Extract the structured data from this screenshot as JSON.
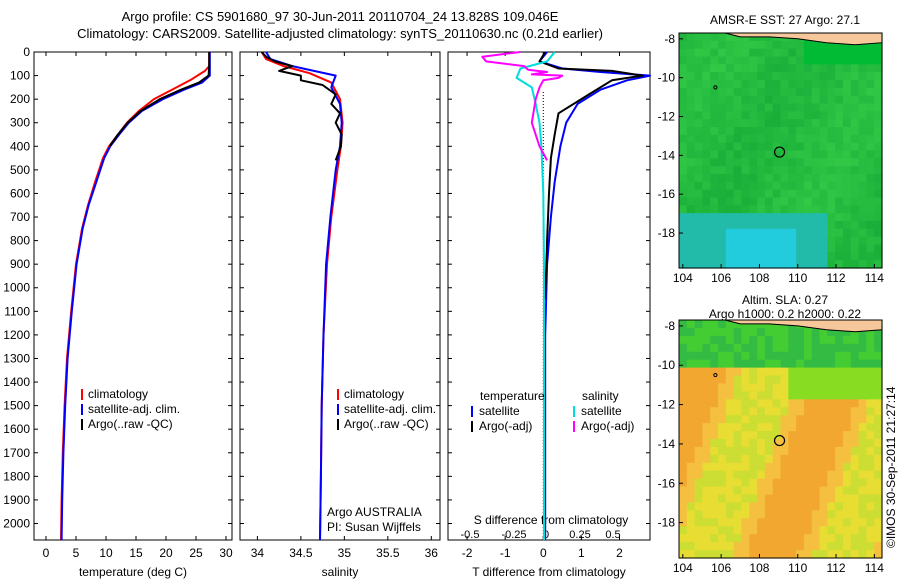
{
  "header": {
    "line1": "Argo profile: CS 5901680_97 30-Jun-2011 20110704_24 13.828S 109.046E",
    "line2": "Climatology: CARS2009. Satellite-adjusted climatology: synTS_20110630.nc (0.21d earlier)"
  },
  "credit": "©IMOS 30-Sep-2011 21:27:14",
  "chart_data": [
    {
      "type": "line",
      "panel": "temperature",
      "xlabel": "temperature (deg C)",
      "ylabel": "",
      "xlim": [
        -2,
        31
      ],
      "ylim": [
        2070,
        0
      ],
      "y_inverted": true,
      "xticks": [
        0,
        5,
        10,
        15,
        20,
        25,
        30
      ],
      "yticks": [
        0,
        100,
        200,
        300,
        400,
        500,
        600,
        700,
        800,
        900,
        1000,
        1100,
        1200,
        1300,
        1400,
        1500,
        1600,
        1700,
        1800,
        1900,
        2000
      ],
      "legend": [
        "climatology",
        "satellite-adj. clim.",
        "Argo(..raw -QC)"
      ],
      "legend_position": "lower-center",
      "series": [
        {
          "name": "climatology",
          "color": "#ff0000",
          "x": [
            27.2,
            27.2,
            26.5,
            24,
            21,
            18,
            15.5,
            13.5,
            12,
            10.5,
            9.5,
            8.2,
            7,
            6,
            5,
            4.2,
            3.5,
            3.1,
            2.8,
            2.6,
            2.5
          ],
          "y": [
            0,
            60,
            80,
            120,
            160,
            200,
            250,
            300,
            350,
            400,
            450,
            550,
            650,
            750,
            900,
            1100,
            1300,
            1500,
            1700,
            1900,
            2070
          ]
        },
        {
          "name": "satellite-adj. clim.",
          "color": "#0000ff",
          "x": [
            27.3,
            27.3,
            27.3,
            26,
            23,
            19.5,
            16,
            13.8,
            12.2,
            10.7,
            9.7,
            8.4,
            7.1,
            6.1,
            5.1,
            4.3,
            3.6,
            3.2,
            2.9,
            2.7,
            2.6
          ],
          "y": [
            0,
            60,
            100,
            130,
            160,
            200,
            250,
            300,
            350,
            400,
            450,
            550,
            650,
            750,
            900,
            1100,
            1300,
            1500,
            1700,
            1900,
            2070
          ]
        },
        {
          "name": "Argo(..raw -QC)",
          "color": "#000000",
          "x": [
            27.2,
            27.2,
            27.1,
            25.5,
            22.5,
            19,
            15.8,
            13.6,
            12,
            10.6
          ],
          "y": [
            0,
            60,
            100,
            130,
            160,
            200,
            250,
            300,
            350,
            400
          ]
        }
      ]
    },
    {
      "type": "line",
      "panel": "salinity",
      "xlabel": "salinity",
      "ylabel": "",
      "xlim": [
        33.8,
        36.1
      ],
      "ylim": [
        2070,
        0
      ],
      "y_inverted": true,
      "xticks": [
        34,
        34.5,
        35,
        35.5,
        36
      ],
      "legend": [
        "climatology",
        "satellite-adj. clim.",
        "Argo(..raw -QC)"
      ],
      "legend_position": "lower-center",
      "annotation": "Argo AUSTRALIA",
      "annotation2": "PI: Susan Wijffels",
      "series": [
        {
          "name": "climatology",
          "color": "#ff0000",
          "x": [
            34.05,
            34.1,
            34.3,
            34.6,
            34.85,
            34.95,
            34.98,
            34.96,
            34.92,
            34.85,
            34.8,
            34.76,
            34.74,
            34.73,
            34.72
          ],
          "y": [
            0,
            30,
            60,
            90,
            130,
            200,
            300,
            400,
            500,
            700,
            900,
            1200,
            1500,
            1800,
            2070
          ]
        },
        {
          "name": "satellite-adj. clim.",
          "color": "#0000ff",
          "x": [
            34.1,
            34.15,
            34.4,
            34.9,
            34.85,
            34.95,
            34.97,
            34.95,
            34.9,
            34.84,
            34.79,
            34.76,
            34.74,
            34.73,
            34.72
          ],
          "y": [
            0,
            30,
            60,
            100,
            150,
            220,
            300,
            400,
            500,
            700,
            900,
            1200,
            1500,
            1800,
            2070
          ]
        },
        {
          "name": "Argo(..raw -QC)",
          "color": "#000000",
          "x": [
            34.05,
            34.1,
            34.2,
            34.4,
            34.25,
            34.5,
            34.5,
            34.75,
            34.9,
            34.85,
            34.95,
            34.9,
            34.97,
            34.96,
            34.9
          ],
          "y": [
            0,
            20,
            40,
            60,
            80,
            100,
            120,
            140,
            180,
            220,
            260,
            300,
            350,
            400,
            460
          ]
        }
      ]
    },
    {
      "type": "line",
      "panel": "differences",
      "xlabel": "T difference from climatology",
      "xlabel_top": "S difference from climatology",
      "ylabel": "",
      "xlim": [
        -2.5,
        2.8
      ],
      "xticks": [
        -2,
        -1,
        0,
        1,
        2
      ],
      "xticks_top": [
        -0.5,
        -0.25,
        0,
        0.25,
        0.5
      ],
      "ylim": [
        2070,
        0
      ],
      "y_inverted": true,
      "legend_groups": [
        {
          "title": "temperature",
          "items": [
            "satellite",
            "Argo(-adj)"
          ]
        },
        {
          "title": "salinity",
          "items": [
            "satellite",
            "Argo(-adj)"
          ]
        }
      ],
      "legend_position": "lower-center",
      "series": [
        {
          "name": "temperature satellite",
          "color": "#0000ff",
          "x": [
            0.1,
            -0.1,
            0.5,
            1.5,
            2.8,
            2.2,
            1.5,
            0.9,
            0.6,
            0.45,
            0.3,
            0.2,
            0.1,
            0.05,
            0.05,
            0.05
          ],
          "y": [
            0,
            40,
            70,
            85,
            100,
            120,
            160,
            220,
            300,
            400,
            550,
            700,
            900,
            1200,
            1600,
            2070
          ]
        },
        {
          "name": "temperature Argo(-adj)",
          "color": "#000000",
          "x": [
            0.05,
            -0.1,
            0.4,
            1.8,
            2.6,
            1.8,
            1.2,
            0.4,
            0.3,
            0.2,
            0.15,
            0.1,
            0.05
          ],
          "y": [
            0,
            40,
            70,
            80,
            100,
            120,
            180,
            260,
            350,
            450,
            600,
            800,
            1050
          ]
        },
        {
          "name": "salinity satellite",
          "color": "#00dddd",
          "x": [
            0.3,
            0.1,
            -0.6,
            -0.7,
            -0.3,
            -0.2,
            -0.1,
            -0.05,
            0,
            0.02,
            0.02,
            0.02
          ],
          "y": [
            0,
            40,
            70,
            110,
            150,
            220,
            300,
            400,
            600,
            900,
            1400,
            2070
          ]
        },
        {
          "name": "salinity Argo(-adj)",
          "color": "#ff00ff",
          "x": [
            -0.6,
            -1.6,
            -1.5,
            -0.5,
            -0.4,
            0.1,
            -0.3,
            0.5,
            0.4,
            0.0,
            -0.1,
            -0.2,
            -0.3,
            -0.1,
            0.1
          ],
          "y": [
            0,
            20,
            40,
            60,
            75,
            85,
            95,
            100,
            110,
            120,
            150,
            200,
            300,
            400,
            460
          ]
        }
      ]
    },
    {
      "type": "heatmap",
      "panel": "sst_map",
      "title": "AMSR-E SST: 27 Argo: 27.1",
      "xlim": [
        103.8,
        114.4
      ],
      "ylim": [
        -19.8,
        -7.7
      ],
      "xticks": [
        104,
        106,
        108,
        110,
        112,
        114
      ],
      "yticks": [
        -8,
        -10,
        -12,
        -14,
        -16,
        -18
      ],
      "profile_marker": {
        "lon": 109.05,
        "lat": -13.83
      },
      "previous_marker": {
        "lon": 105.7,
        "lat": -10.5
      }
    },
    {
      "type": "heatmap",
      "panel": "sla_map",
      "title": "Altim. SLA: 0.27",
      "subtitle": "Argo h1000: 0.2 h2000: 0.22",
      "xlim": [
        103.8,
        114.4
      ],
      "ylim": [
        -19.8,
        -7.7
      ],
      "xticks": [
        104,
        106,
        108,
        110,
        112,
        114
      ],
      "yticks": [
        -8,
        -10,
        -12,
        -14,
        -16,
        -18
      ],
      "profile_marker": {
        "lon": 109.05,
        "lat": -13.83
      },
      "previous_marker": {
        "lon": 105.7,
        "lat": -10.5
      }
    }
  ]
}
